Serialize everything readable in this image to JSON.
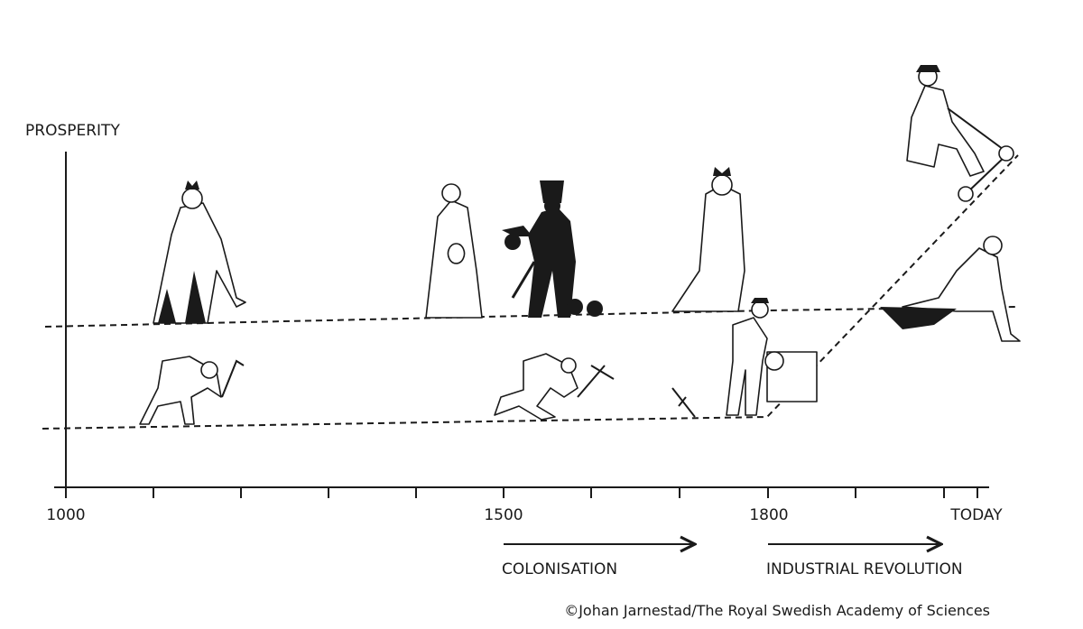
{
  "axis": {
    "y_label": "PROSPERITY",
    "x_labels": [
      "1000",
      "1500",
      "1800",
      "TODAY"
    ]
  },
  "periods": [
    {
      "label": "COLONISATION"
    },
    {
      "label": "INDUSTRIAL REVOLUTION"
    }
  ],
  "credit": "©Johan Jarnestad/The Royal Swedish Academy of Sciences"
}
